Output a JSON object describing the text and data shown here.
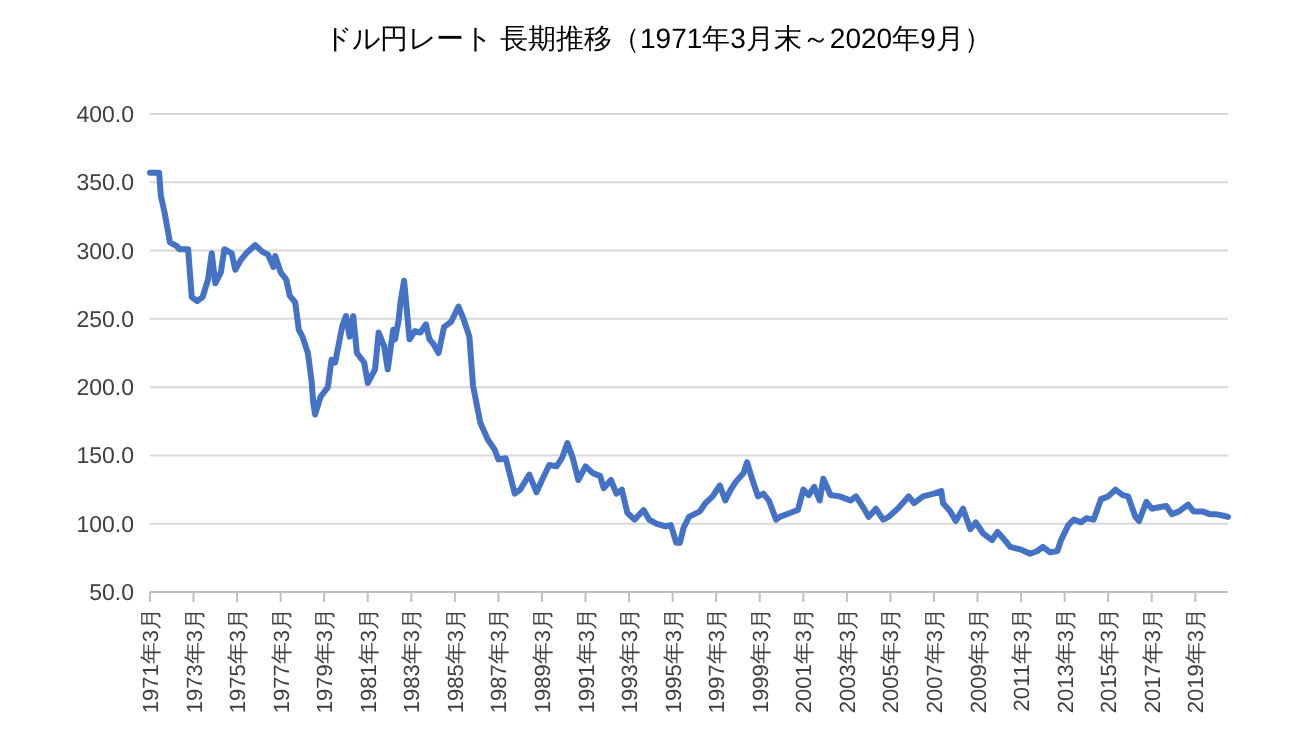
{
  "chart_data": {
    "type": "line",
    "title": "ドル円レート 長期推移（1971年3月末～2020年9月）",
    "x": [
      "1971-03",
      "1971-08",
      "1971-09",
      "1971-11",
      "1972-02",
      "1972-06",
      "1972-07",
      "1972-12",
      "1973-02",
      "1973-05",
      "1973-08",
      "1973-11",
      "1974-01",
      "1974-03",
      "1974-06",
      "1974-08",
      "1974-12",
      "1975-02",
      "1975-05",
      "1975-08",
      "1976-01",
      "1976-05",
      "1976-08",
      "1976-11",
      "1976-12",
      "1977-03",
      "1977-06",
      "1977-08",
      "1977-11",
      "1978-01",
      "1978-03",
      "1978-06",
      "1978-08",
      "1978-09",
      "1978-10",
      "1979-01",
      "1979-05",
      "1979-07",
      "1979-09",
      "1980-01",
      "1980-03",
      "1980-05",
      "1980-07",
      "1980-09",
      "1981-01",
      "1981-03",
      "1981-07",
      "1981-09",
      "1981-12",
      "1982-02",
      "1982-05",
      "1982-06",
      "1982-08",
      "1982-09",
      "1982-11",
      "1983-02",
      "1983-05",
      "1983-08",
      "1983-11",
      "1984-01",
      "1984-03",
      "1984-06",
      "1984-09",
      "1985-01",
      "1985-05",
      "1985-08",
      "1985-11",
      "1986-01",
      "1986-05",
      "1986-09",
      "1987-01",
      "1987-03",
      "1987-07",
      "1987-12",
      "1988-03",
      "1988-08",
      "1988-12",
      "1989-03",
      "1989-07",
      "1989-11",
      "1990-02",
      "1990-05",
      "1990-08",
      "1990-11",
      "1991-03",
      "1991-07",
      "1991-11",
      "1992-01",
      "1992-05",
      "1992-08",
      "1992-11",
      "1993-02",
      "1993-06",
      "1993-11",
      "1994-02",
      "1994-06",
      "1994-11",
      "1995-02",
      "1995-05",
      "1995-07",
      "1995-09",
      "1995-12",
      "1996-06",
      "1996-09",
      "1997-01",
      "1997-05",
      "1997-08",
      "1997-11",
      "1998-02",
      "1998-06",
      "1998-08",
      "1998-11",
      "1999-02",
      "1999-05",
      "1999-08",
      "1999-12",
      "2000-02",
      "2000-08",
      "2000-12",
      "2001-03",
      "2001-06",
      "2001-09",
      "2001-12",
      "2002-02",
      "2002-06",
      "2002-11",
      "2003-03",
      "2003-05",
      "2003-08",
      "2003-12",
      "2004-03",
      "2004-07",
      "2004-11",
      "2005-02",
      "2005-07",
      "2006-01",
      "2006-04",
      "2006-09",
      "2007-03",
      "2007-07",
      "2007-08",
      "2007-12",
      "2008-03",
      "2008-07",
      "2008-11",
      "2009-02",
      "2009-06",
      "2009-11",
      "2010-02",
      "2010-06",
      "2010-09",
      "2011-03",
      "2011-08",
      "2011-12",
      "2012-03",
      "2012-07",
      "2012-11",
      "2013-01",
      "2013-05",
      "2013-08",
      "2013-12",
      "2014-03",
      "2014-07",
      "2014-11",
      "2015-03",
      "2015-07",
      "2015-11",
      "2016-02",
      "2016-06",
      "2016-08",
      "2016-12",
      "2017-03",
      "2017-07",
      "2017-11",
      "2018-02",
      "2018-06",
      "2018-11",
      "2019-02",
      "2019-07",
      "2019-11",
      "2020-02",
      "2020-06",
      "2020-09"
    ],
    "values": [
      357,
      357,
      340,
      328,
      306,
      303,
      301,
      301,
      266,
      263,
      266,
      279,
      298,
      276,
      284,
      301,
      298,
      286,
      293,
      298,
      304,
      299,
      297,
      288,
      296,
      284,
      279,
      267,
      262,
      242,
      237,
      225,
      205,
      188,
      180,
      193,
      200,
      220,
      218,
      245,
      252,
      237,
      252,
      225,
      218,
      203,
      213,
      240,
      230,
      213,
      242,
      235,
      249,
      262,
      278,
      235,
      241,
      240,
      246,
      235,
      232,
      225,
      244,
      248,
      259,
      249,
      237,
      201,
      174,
      162,
      154,
      147,
      148,
      122,
      125,
      136,
      123,
      132,
      143,
      142,
      148,
      159,
      148,
      132,
      142,
      137,
      135,
      126,
      132,
      122,
      125,
      108,
      103,
      110,
      103,
      100,
      98,
      99,
      86,
      86,
      97,
      105,
      109,
      115,
      120,
      128,
      117,
      125,
      131,
      137,
      145,
      132,
      120,
      122,
      117,
      103,
      105,
      108,
      110,
      125,
      121,
      127,
      117,
      133,
      121,
      120,
      118,
      117,
      120,
      112,
      105,
      111,
      103,
      105,
      111,
      120,
      115,
      120,
      122,
      124,
      115,
      109,
      102,
      111,
      96,
      101,
      93,
      88,
      94,
      88,
      83,
      81,
      78,
      80,
      83,
      79,
      80,
      88,
      99,
      103,
      101,
      104,
      103,
      118,
      120,
      125,
      121,
      120,
      105,
      102,
      116,
      111,
      112,
      113,
      107,
      109,
      114,
      109,
      109,
      107,
      107,
      106,
      105
    ],
    "color": "#4472c4",
    "line_style": "solid",
    "marker": "none",
    "grid": "y",
    "legend": false,
    "xlim": [
      "1971-03",
      "2020-09"
    ],
    "xticks": [
      {
        "value": "1971-03",
        "label": "1971年3月"
      },
      {
        "value": "1973-03",
        "label": "1973年3月"
      },
      {
        "value": "1975-03",
        "label": "1975年3月"
      },
      {
        "value": "1977-03",
        "label": "1977年3月"
      },
      {
        "value": "1979-03",
        "label": "1979年3月"
      },
      {
        "value": "1981-03",
        "label": "1981年3月"
      },
      {
        "value": "1983-03",
        "label": "1983年3月"
      },
      {
        "value": "1985-03",
        "label": "1985年3月"
      },
      {
        "value": "1987-03",
        "label": "1987年3月"
      },
      {
        "value": "1989-03",
        "label": "1989年3月"
      },
      {
        "value": "1991-03",
        "label": "1991年3月"
      },
      {
        "value": "1993-03",
        "label": "1993年3月"
      },
      {
        "value": "1995-03",
        "label": "1995年3月"
      },
      {
        "value": "1997-03",
        "label": "1997年3月"
      },
      {
        "value": "1999-03",
        "label": "1999年3月"
      },
      {
        "value": "2001-03",
        "label": "2001年3月"
      },
      {
        "value": "2003-03",
        "label": "2003年3月"
      },
      {
        "value": "2005-03",
        "label": "2005年3月"
      },
      {
        "value": "2007-03",
        "label": "2007年3月"
      },
      {
        "value": "2009-03",
        "label": "2009年3月"
      },
      {
        "value": "2011-03",
        "label": "2011年3月"
      },
      {
        "value": "2013-03",
        "label": "2013年3月"
      },
      {
        "value": "2015-03",
        "label": "2015年3月"
      },
      {
        "value": "2017-03",
        "label": "2017年3月"
      },
      {
        "value": "2019-03",
        "label": "2019年3月"
      }
    ],
    "ylim": [
      50,
      400
    ],
    "yticks": [
      {
        "value": 50,
        "label": "50.0"
      },
      {
        "value": 100,
        "label": "100.0"
      },
      {
        "value": 150,
        "label": "150.0"
      },
      {
        "value": 200,
        "label": "200.0"
      },
      {
        "value": 250,
        "label": "250.0"
      },
      {
        "value": 300,
        "label": "300.0"
      },
      {
        "value": 350,
        "label": "350.0"
      },
      {
        "value": 400,
        "label": "400.0"
      }
    ]
  }
}
